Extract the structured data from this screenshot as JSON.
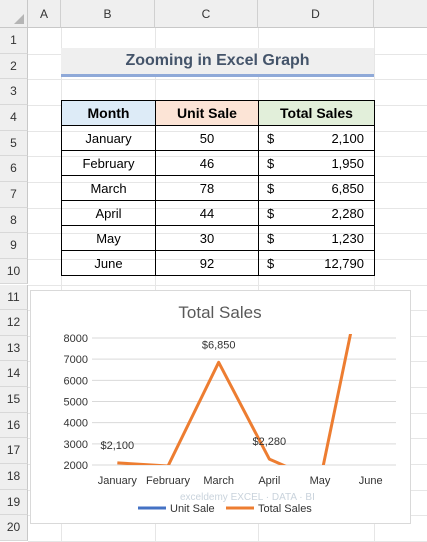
{
  "sheet": {
    "columns": [
      "A",
      "B",
      "C",
      "D"
    ],
    "rows": [
      "1",
      "2",
      "3",
      "4",
      "5",
      "6",
      "7",
      "8",
      "9",
      "10",
      "11",
      "12",
      "13",
      "14",
      "15",
      "16",
      "17",
      "18",
      "19",
      "20"
    ]
  },
  "title": "Zooming in Excel Graph",
  "table": {
    "headers": {
      "month": "Month",
      "unit": "Unit Sale",
      "total": "Total Sales"
    },
    "currency_symbol": "$",
    "rows": [
      {
        "month": "January",
        "unit": "50",
        "total": "2,100"
      },
      {
        "month": "February",
        "unit": "46",
        "total": "1,950"
      },
      {
        "month": "March",
        "unit": "78",
        "total": "6,850"
      },
      {
        "month": "April",
        "unit": "44",
        "total": "2,280"
      },
      {
        "month": "May",
        "unit": "30",
        "total": "1,230"
      },
      {
        "month": "June",
        "unit": "92",
        "total": "12,790"
      }
    ]
  },
  "watermark": "exceldemy EXCEL · DATA · BI",
  "colors": {
    "unit_sale": "#4472c4",
    "total_sales": "#ed7d31"
  },
  "chart_data": {
    "type": "line",
    "title": "Total Sales",
    "categories": [
      "January",
      "February",
      "March",
      "April",
      "May",
      "June"
    ],
    "ylim": [
      2000,
      8000
    ],
    "yticks": [
      "2000",
      "3000",
      "4000",
      "5000",
      "6000",
      "7000",
      "8000"
    ],
    "grid": true,
    "legend_position": "bottom",
    "series": [
      {
        "name": "Unit Sale",
        "values": [
          50,
          46,
          78,
          44,
          30,
          92
        ],
        "color": "#4472c4"
      },
      {
        "name": "Total Sales",
        "values": [
          2100,
          1950,
          6850,
          2280,
          1230,
          12790
        ],
        "color": "#ed7d31"
      }
    ],
    "data_labels": [
      {
        "category": "January",
        "text": "$2,100"
      },
      {
        "category": "March",
        "text": "$6,850"
      },
      {
        "category": "April",
        "text": "$2,280"
      }
    ]
  }
}
